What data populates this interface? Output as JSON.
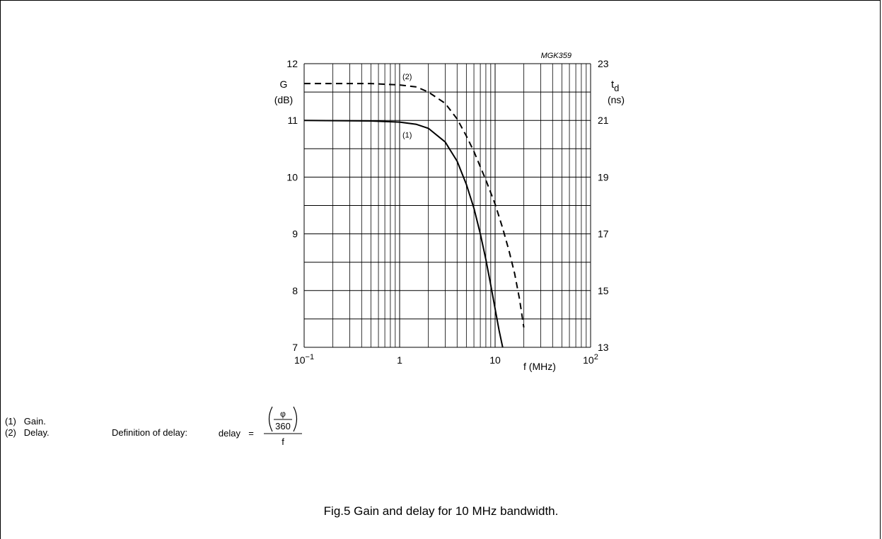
{
  "chart_data": {
    "type": "line",
    "code": "MGK359",
    "x_scale": "log",
    "xlim": [
      0.1,
      100
    ],
    "x_ticks": [
      {
        "value": 0.1,
        "base": "10",
        "exp": "−1"
      },
      {
        "value": 1,
        "base": "1",
        "exp": ""
      },
      {
        "value": 10,
        "base": "10",
        "exp": ""
      },
      {
        "value": 100,
        "base": "10",
        "exp": "2"
      }
    ],
    "xlabel": "f (MHz)",
    "y_left": {
      "label_top": "G",
      "label_bottom": "(dB)",
      "ylim": [
        7,
        12
      ],
      "ticks": [
        7,
        8,
        9,
        10,
        11,
        12
      ]
    },
    "y_right": {
      "label_top": "t",
      "label_sub": "d",
      "label_bottom": "(ns)",
      "ylim": [
        13,
        23
      ],
      "ticks": [
        13,
        15,
        17,
        19,
        21,
        23
      ]
    },
    "grid": true,
    "series": [
      {
        "name": "(1)",
        "axis": "left",
        "style": "solid",
        "x": [
          0.1,
          0.5,
          1,
          1.5,
          2,
          3,
          4,
          5,
          6,
          7,
          8,
          9,
          10,
          11,
          12
        ],
        "y": [
          11.0,
          10.99,
          10.97,
          10.93,
          10.86,
          10.62,
          10.28,
          9.87,
          9.45,
          9.0,
          8.55,
          8.1,
          7.68,
          7.3,
          7.0
        ]
      },
      {
        "name": "(2)",
        "axis": "right",
        "style": "dashed",
        "x": [
          0.1,
          0.5,
          1,
          1.5,
          2,
          3,
          4,
          5,
          6,
          8,
          10,
          12,
          14,
          16,
          18,
          20
        ],
        "y": [
          22.3,
          22.3,
          22.25,
          22.18,
          22.0,
          21.6,
          21.05,
          20.45,
          19.9,
          18.9,
          18.05,
          17.2,
          16.4,
          15.6,
          14.7,
          13.7
        ]
      }
    ]
  },
  "notes": [
    {
      "num": "(1)",
      "text": "Gain."
    },
    {
      "num": "(2)",
      "text": "Delay."
    }
  ],
  "definition": {
    "label": "Definition of delay:",
    "lhs": "delay",
    "eq": "=",
    "phi": "φ",
    "deg": "360",
    "den": "f"
  },
  "caption": "Fig.5  Gain and delay for 10 MHz bandwidth."
}
